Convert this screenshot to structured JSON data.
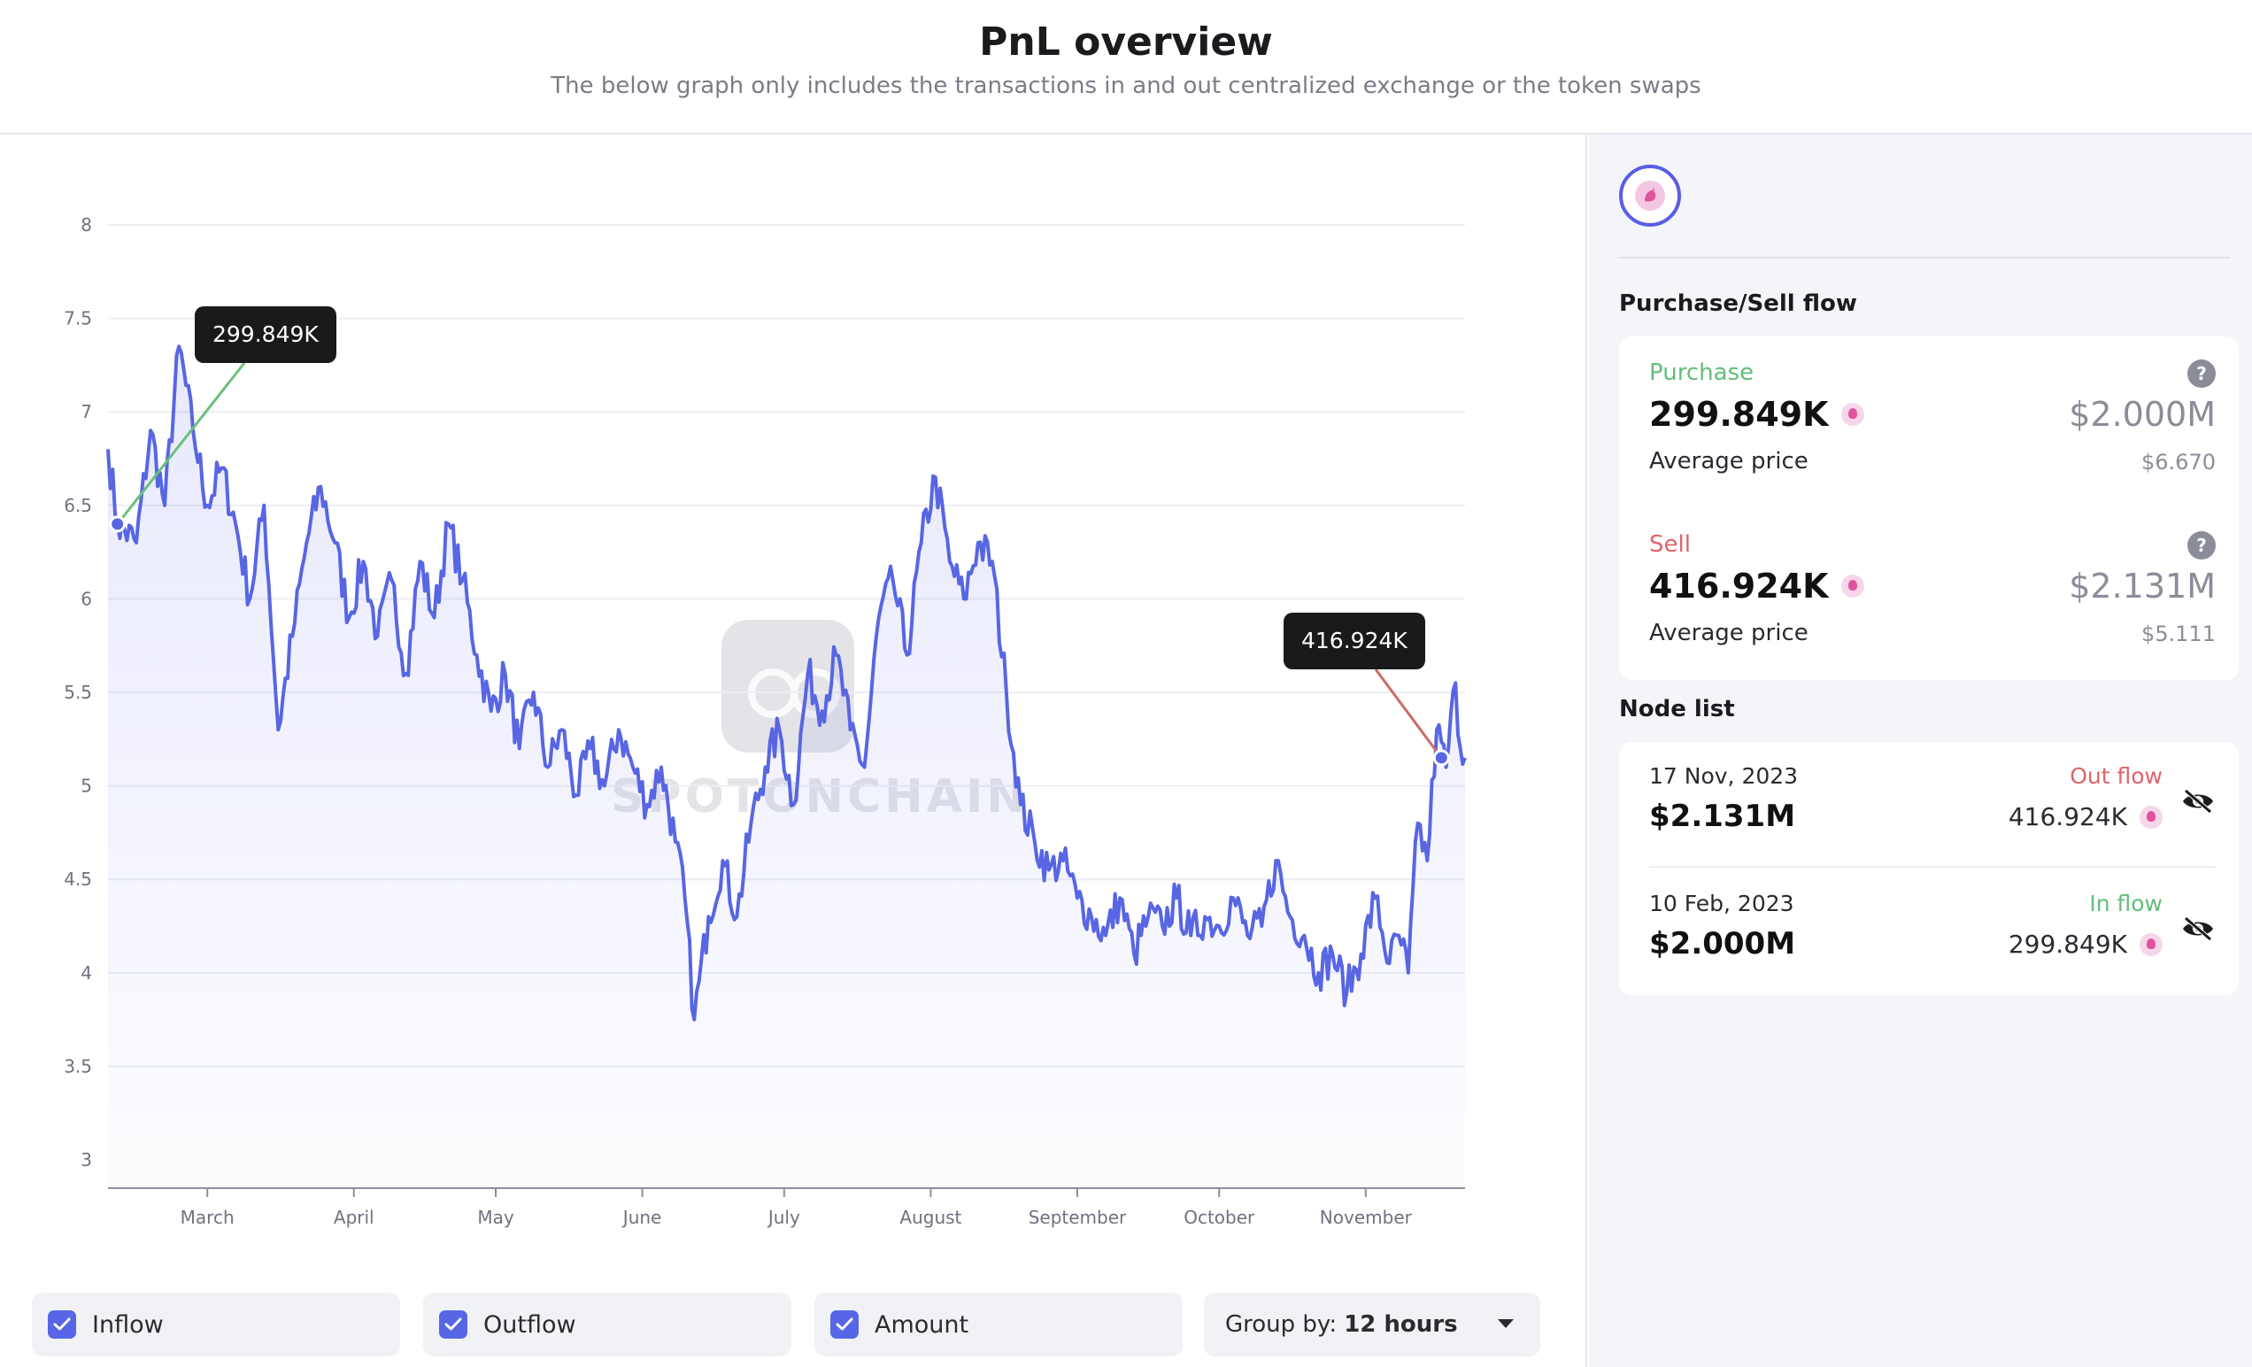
{
  "header": {
    "title": "PnL overview",
    "subtitle": "The below graph only includes the transactions in and out centralized exchange or the token swaps"
  },
  "chart_data": {
    "type": "line",
    "title": "",
    "xlabel": "",
    "ylabel": "",
    "x_ticks": [
      "March",
      "April",
      "May",
      "June",
      "July",
      "August",
      "September",
      "October",
      "November"
    ],
    "y_ticks": [
      3,
      3.5,
      4,
      4.5,
      5,
      5.5,
      6,
      6.5,
      7,
      7.5,
      8
    ],
    "ylim": [
      3,
      8
    ],
    "xlim": [
      "2023-02-08",
      "2023-11-22"
    ],
    "grid": true,
    "series": [
      {
        "color": "#5866e3",
        "points": [
          [
            "2023-02-08",
            6.8
          ],
          [
            "2023-02-10",
            6.4
          ],
          [
            "2023-02-14",
            6.3
          ],
          [
            "2023-02-17",
            6.9
          ],
          [
            "2023-02-20",
            6.5
          ],
          [
            "2023-02-23",
            7.35
          ],
          [
            "2023-02-26",
            6.9
          ],
          [
            "2023-03-01",
            6.5
          ],
          [
            "2023-03-04",
            6.7
          ],
          [
            "2023-03-07",
            6.4
          ],
          [
            "2023-03-10",
            6.0
          ],
          [
            "2023-03-13",
            6.5
          ],
          [
            "2023-03-16",
            5.3
          ],
          [
            "2023-03-19",
            5.8
          ],
          [
            "2023-03-22",
            6.3
          ],
          [
            "2023-03-25",
            6.6
          ],
          [
            "2023-03-28",
            6.3
          ],
          [
            "2023-03-31",
            5.9
          ],
          [
            "2023-04-03",
            6.2
          ],
          [
            "2023-04-06",
            5.8
          ],
          [
            "2023-04-09",
            6.1
          ],
          [
            "2023-04-12",
            5.6
          ],
          [
            "2023-04-15",
            6.2
          ],
          [
            "2023-04-18",
            5.9
          ],
          [
            "2023-04-21",
            6.4
          ],
          [
            "2023-04-24",
            6.1
          ],
          [
            "2023-04-27",
            5.7
          ],
          [
            "2023-04-30",
            5.4
          ],
          [
            "2023-05-03",
            5.6
          ],
          [
            "2023-05-06",
            5.2
          ],
          [
            "2023-05-09",
            5.5
          ],
          [
            "2023-05-12",
            5.1
          ],
          [
            "2023-05-15",
            5.3
          ],
          [
            "2023-05-18",
            4.95
          ],
          [
            "2023-05-21",
            5.2
          ],
          [
            "2023-05-24",
            5.0
          ],
          [
            "2023-05-27",
            5.3
          ],
          [
            "2023-05-30",
            5.1
          ],
          [
            "2023-06-02",
            4.9
          ],
          [
            "2023-06-05",
            5.1
          ],
          [
            "2023-06-08",
            4.7
          ],
          [
            "2023-06-10",
            4.4
          ],
          [
            "2023-06-12",
            3.75
          ],
          [
            "2023-06-15",
            4.3
          ],
          [
            "2023-06-18",
            4.6
          ],
          [
            "2023-06-21",
            4.3
          ],
          [
            "2023-06-24",
            4.8
          ],
          [
            "2023-06-27",
            5.1
          ],
          [
            "2023-06-30",
            5.3
          ],
          [
            "2023-07-03",
            4.9
          ],
          [
            "2023-07-06",
            5.6
          ],
          [
            "2023-07-09",
            5.4
          ],
          [
            "2023-07-12",
            5.7
          ],
          [
            "2023-07-15",
            5.3
          ],
          [
            "2023-07-18",
            5.1
          ],
          [
            "2023-07-21",
            5.9
          ],
          [
            "2023-07-24",
            6.1
          ],
          [
            "2023-07-27",
            5.7
          ],
          [
            "2023-07-30",
            6.3
          ],
          [
            "2023-08-02",
            6.65
          ],
          [
            "2023-08-05",
            6.2
          ],
          [
            "2023-08-08",
            6.0
          ],
          [
            "2023-08-11",
            6.3
          ],
          [
            "2023-08-14",
            6.2
          ],
          [
            "2023-08-17",
            5.5
          ],
          [
            "2023-08-20",
            4.9
          ],
          [
            "2023-08-23",
            4.7
          ],
          [
            "2023-08-26",
            4.55
          ],
          [
            "2023-08-29",
            4.6
          ],
          [
            "2023-09-01",
            4.4
          ],
          [
            "2023-09-04",
            4.3
          ],
          [
            "2023-09-07",
            4.2
          ],
          [
            "2023-09-10",
            4.4
          ],
          [
            "2023-09-13",
            4.1
          ],
          [
            "2023-09-16",
            4.3
          ],
          [
            "2023-09-19",
            4.25
          ],
          [
            "2023-09-22",
            4.4
          ],
          [
            "2023-09-25",
            4.2
          ],
          [
            "2023-09-28",
            4.3
          ],
          [
            "2023-10-01",
            4.25
          ],
          [
            "2023-10-04",
            4.4
          ],
          [
            "2023-10-07",
            4.2
          ],
          [
            "2023-10-10",
            4.25
          ],
          [
            "2023-10-13",
            4.6
          ],
          [
            "2023-10-16",
            4.3
          ],
          [
            "2023-10-19",
            4.2
          ],
          [
            "2023-10-22",
            4.0
          ],
          [
            "2023-10-25",
            4.1
          ],
          [
            "2023-10-28",
            3.9
          ],
          [
            "2023-10-31",
            4.1
          ],
          [
            "2023-11-03",
            4.4
          ],
          [
            "2023-11-06",
            4.05
          ],
          [
            "2023-11-08",
            4.2
          ],
          [
            "2023-11-10",
            4.0
          ],
          [
            "2023-11-12",
            4.8
          ],
          [
            "2023-11-14",
            4.6
          ],
          [
            "2023-11-16",
            5.3
          ],
          [
            "2023-11-18",
            5.1
          ],
          [
            "2023-11-20",
            5.55
          ],
          [
            "2023-11-21",
            5.2
          ],
          [
            "2023-11-22",
            5.15
          ]
        ]
      }
    ],
    "markers": [
      {
        "date": "2023-02-10",
        "y": 6.4,
        "label": "299.849K",
        "color": "#6cc07c"
      },
      {
        "date": "2023-11-17",
        "y": 5.15,
        "label": "416.924K",
        "color": "#cf6b66"
      }
    ]
  },
  "watermark": "SPOTONCHAIN",
  "controls": {
    "inflow_label": "Inflow",
    "outflow_label": "Outflow",
    "amount_label": "Amount",
    "group_by_label": "Group by:",
    "group_by_value": "12 hours"
  },
  "side": {
    "flow_title": "Purchase/Sell flow",
    "purchase": {
      "label": "Purchase",
      "amount": "299.849K",
      "usd": "$2.000M",
      "avg_label": "Average price",
      "avg_value": "$6.670",
      "help": "?"
    },
    "sell": {
      "label": "Sell",
      "amount": "416.924K",
      "usd": "$2.131M",
      "avg_label": "Average price",
      "avg_value": "$5.111",
      "help": "?"
    },
    "node_title": "Node list",
    "nodes": [
      {
        "date": "17 Nov, 2023",
        "usd": "$2.131M",
        "type": "Out flow",
        "amount": "416.924K"
      },
      {
        "date": "10 Feb, 2023",
        "usd": "$2.000M",
        "type": "In flow",
        "amount": "299.849K"
      }
    ]
  },
  "colors": {
    "line": "#5866e3",
    "accent": "#5766e6",
    "purchase": "#63bd7a",
    "sell": "#e0636a"
  }
}
